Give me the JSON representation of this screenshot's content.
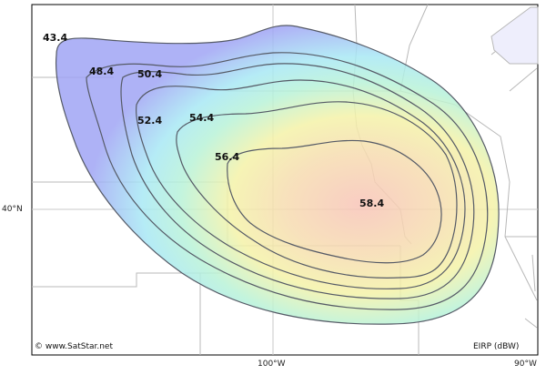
{
  "map": {
    "contour_labels": [
      "43.4",
      "48.4",
      "50.4",
      "52.4",
      "54.4",
      "56.4",
      "58.4"
    ],
    "latitude_label": "40°N",
    "longitude_labels": [
      "100°W",
      "90°W"
    ],
    "copyright": "© www.SatStar.net",
    "unit_label": "EIRP (dBW)",
    "colors": {
      "outer": "#a6a8f4",
      "mid": "#a8f0e0",
      "inner": "#f4f0a8",
      "core": "#f8c8b8",
      "contour_line": "#555a66",
      "border_line": "#b8b8b8"
    }
  }
}
